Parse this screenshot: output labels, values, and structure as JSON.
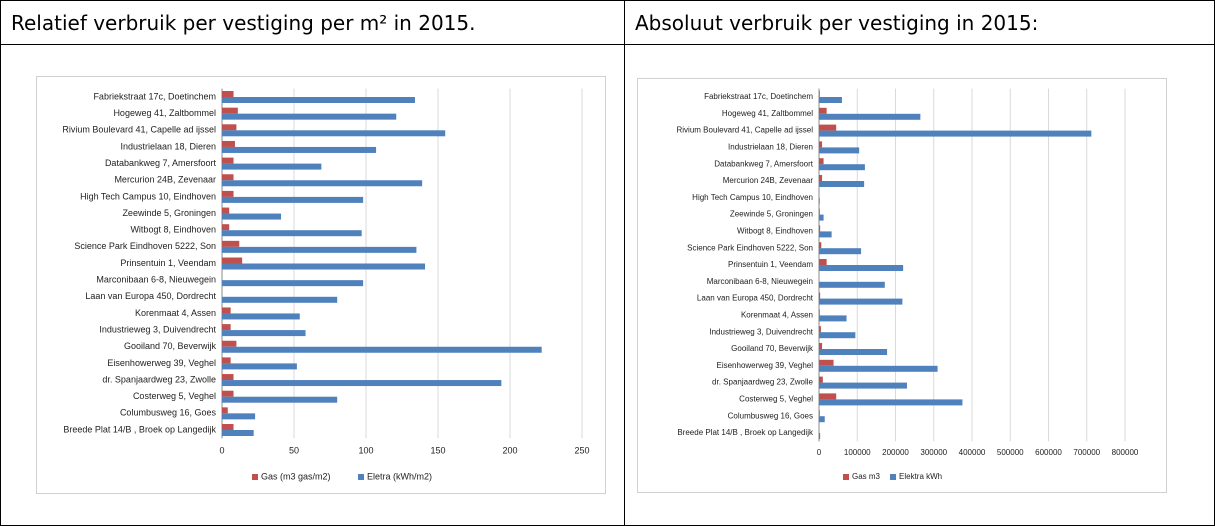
{
  "table": {
    "headers": [
      "Relatief verbruik per vestiging per m² in 2015.",
      "Absoluut verbruik per vestiging in 2015:"
    ]
  },
  "chart_data": [
    {
      "type": "bar",
      "orientation": "horizontal",
      "grid": true,
      "categories": [
        "Fabriekstraat 17c, Doetinchem",
        "Hogeweg 41, Zaltbommel",
        "Rivium Boulevard 41, Capelle ad ijssel",
        "Industrielaan 18, Dieren",
        "Databankweg 7, Amersfoort",
        "Mercurion 24B, Zevenaar",
        "High Tech Campus 10, Eindhoven",
        "Zeewinde 5, Groningen",
        "Witbogt 8, Eindhoven",
        "Science Park Eindhoven 5222, Son",
        "Prinsentuin 1, Veendam",
        "Marconibaan 6-8, Nieuwegein",
        "Laan van Europa 450, Dordrecht",
        "Korenmaat 4, Assen",
        "Industrieweg 3, Duivendrecht",
        "Gooiland 70, Beverwijk",
        "Eisenhowerweg 39, Veghel",
        "dr. Spanjaardweg 23, Zwolle",
        "Costerweg 5, Veghel",
        "Columbusweg 16, Goes",
        "Breede Plat 14/B , Broek op Langedijk"
      ],
      "series": [
        {
          "name": "Gas (m3 gas/m2)",
          "color": "#c0504d",
          "values": [
            8,
            11,
            10,
            9,
            8,
            8,
            8,
            5,
            5,
            12,
            14,
            0,
            0,
            6,
            6,
            10,
            6,
            8,
            8,
            4,
            8
          ]
        },
        {
          "name": "Eletra (kWh/m2)",
          "color": "#4f81bd",
          "values": [
            134,
            121,
            155,
            107,
            69,
            139,
            98,
            41,
            97,
            135,
            141,
            98,
            80,
            54,
            58,
            222,
            52,
            194,
            80,
            23,
            22
          ]
        }
      ],
      "xlim": [
        0,
        250
      ],
      "xticks": [
        0,
        50,
        100,
        150,
        200,
        250
      ]
    },
    {
      "type": "bar",
      "orientation": "horizontal",
      "grid": true,
      "categories": [
        "Fabriekstraat 17c, Doetinchem",
        "Hogeweg 41, Zaltbommel",
        "Rivium Boulevard 41, Capelle ad ijssel",
        "Industrielaan 18, Dieren",
        "Databankweg 7, Amersfoort",
        "Mercurion 24B, Zevenaar",
        "High Tech Campus 10, Eindhoven",
        "Zeewinde 5, Groningen",
        "Witbogt 8, Eindhoven",
        "Science Park Eindhoven 5222, Son",
        "Prinsentuin 1, Veendam",
        "Marconibaan 6-8, Nieuwegein",
        "Laan van Europa 450, Dordrecht",
        "Korenmaat 4, Assen",
        "Industrieweg 3, Duivendrecht",
        "Gooiland 70, Beverwijk",
        "Eisenhowerweg 39, Veghel",
        "dr. Spanjaardweg 23, Zwolle",
        "Costerweg 5, Veghel",
        "Columbusweg 16, Goes",
        "Breede Plat 14/B , Broek op Langedijk"
      ],
      "series": [
        {
          "name": "Gas m3",
          "color": "#c0504d",
          "values": [
            2000,
            20000,
            45000,
            8000,
            12000,
            8000,
            0,
            2000,
            3000,
            6000,
            20000,
            0,
            3000,
            2000,
            5000,
            8000,
            38000,
            10000,
            45000,
            2000,
            0
          ]
        },
        {
          "name": "Elektra kWh",
          "color": "#4f81bd",
          "values": [
            60000,
            265000,
            712000,
            105000,
            120000,
            118000,
            2000,
            12000,
            33000,
            110000,
            220000,
            172000,
            218000,
            72000,
            95000,
            178000,
            310000,
            230000,
            375000,
            15000,
            3000
          ]
        }
      ],
      "xlim": [
        0,
        800000
      ],
      "xticks": [
        0,
        100000,
        200000,
        300000,
        400000,
        500000,
        600000,
        700000,
        800000
      ]
    }
  ]
}
